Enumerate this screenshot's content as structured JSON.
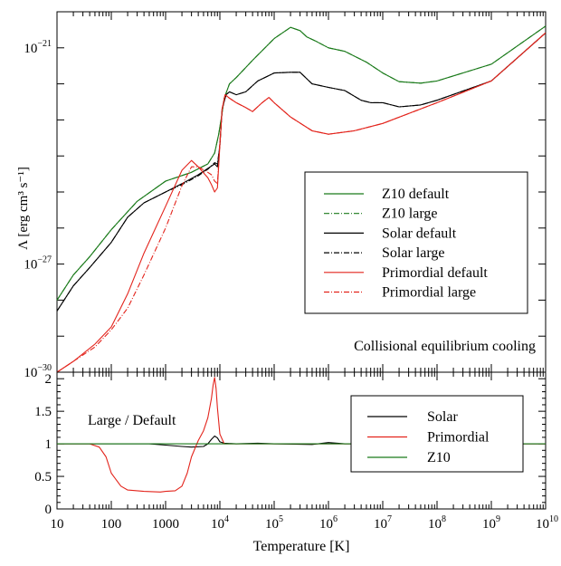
{
  "chart_data": [
    {
      "type": "line",
      "x_scale": "log",
      "y_scale": "log",
      "xlim": [
        10,
        10000000000
      ],
      "ylim": [
        1e-30,
        1e-20
      ],
      "ylabel": "Λ [erg cm³ s⁻¹]",
      "y_major_ticks": [
        {
          "value": 1e-21,
          "base": "10",
          "exp": "−21"
        },
        {
          "value": 1e-27,
          "base": "10",
          "exp": "−27"
        },
        {
          "value": 1e-30,
          "base": "10",
          "exp": "−30"
        }
      ],
      "annotation": "Collisional equilibrium cooling",
      "legend_position": "center-right",
      "series": [
        {
          "name": "Z10 default",
          "color": "#1a7a1a",
          "dash": "",
          "x": [
            10,
            20,
            40,
            100,
            300,
            1000,
            3000,
            6000,
            8000,
            9500,
            10500,
            12000,
            15000,
            20000,
            40000,
            100000,
            200000,
            300000,
            400000,
            600000,
            1000000,
            2000000,
            5000000,
            10000000,
            20000000,
            50000000,
            100000000,
            1000000000,
            10000000000
          ],
          "y": [
            1e-28,
            5e-28,
            1.6e-27,
            9e-27,
            5.5e-26,
            2e-25,
            3.5e-25,
            6e-25,
            1.2e-24,
            4e-24,
            1e-23,
            4e-23,
            1e-22,
            1.5e-22,
            4.5e-22,
            1.8e-21,
            3.7e-21,
            3e-21,
            2e-21,
            1.5e-21,
            1e-21,
            8e-22,
            4e-22,
            2e-22,
            1.15e-22,
            1.05e-22,
            1.2e-22,
            3.5e-22,
            4e-21
          ]
        },
        {
          "name": "Z10 large",
          "color": "#1a7a1a",
          "dash": "6,2,1,2",
          "x": [
            10,
            20,
            40,
            100,
            300,
            1000,
            3000,
            6000,
            8000,
            9500,
            10500,
            12000,
            15000,
            20000,
            40000,
            100000,
            200000,
            300000,
            400000,
            600000,
            1000000,
            2000000,
            5000000,
            10000000,
            20000000,
            50000000,
            100000000,
            1000000000,
            10000000000
          ],
          "y": [
            1e-28,
            5e-28,
            1.6e-27,
            9e-27,
            5.5e-26,
            2e-25,
            3.5e-25,
            6e-25,
            1.2e-24,
            4e-24,
            1e-23,
            4e-23,
            1e-22,
            1.5e-22,
            4.5e-22,
            1.8e-21,
            3.7e-21,
            3e-21,
            2e-21,
            1.5e-21,
            1e-21,
            8e-22,
            4e-22,
            2e-22,
            1.15e-22,
            1.05e-22,
            1.2e-22,
            3.5e-22,
            4e-21
          ]
        },
        {
          "name": "Solar default",
          "color": "#000000",
          "dash": "",
          "x": [
            10,
            20,
            40,
            100,
            200,
            400,
            1000,
            2000,
            4000,
            6000,
            8000,
            9000,
            10000,
            11000,
            13000,
            15000,
            20000,
            30000,
            50000,
            100000,
            200000,
            300000,
            500000,
            1000000,
            2000000,
            4000000,
            6000000,
            10000000,
            20000000,
            50000000,
            100000000,
            1000000000,
            10000000000
          ],
          "y": [
            5e-29,
            2.5e-28,
            8e-28,
            4e-27,
            2e-26,
            5e-26,
            1e-25,
            1.7e-25,
            3e-25,
            4.5e-25,
            6e-25,
            5e-25,
            2e-24,
            2e-23,
            5e-23,
            6e-23,
            5e-23,
            6e-23,
            1.2e-22,
            2e-22,
            2.1e-22,
            2.1e-22,
            1e-22,
            8e-23,
            6.5e-23,
            3.5e-23,
            3e-23,
            3e-23,
            2.3e-23,
            2.6e-23,
            3.5e-23,
            1.2e-22,
            2.6e-21
          ]
        },
        {
          "name": "Solar large",
          "color": "#000000",
          "dash": "6,2,1,2",
          "x": [
            10,
            20,
            40,
            100,
            200,
            400,
            1000,
            2000,
            4000,
            6000,
            8000,
            9000,
            10000,
            11000,
            13000,
            15000,
            20000,
            30000,
            50000,
            100000,
            200000,
            300000,
            500000,
            1000000,
            2000000,
            4000000,
            6000000,
            10000000,
            20000000,
            50000000,
            100000000,
            1000000000,
            10000000000
          ],
          "y": [
            5e-29,
            2.5e-28,
            8e-28,
            4e-27,
            2e-26,
            5e-26,
            1e-25,
            1.6e-25,
            2.8e-25,
            4.3e-25,
            6.5e-25,
            6e-25,
            2e-24,
            2e-23,
            5e-23,
            6e-23,
            5e-23,
            6e-23,
            1.2e-22,
            2e-22,
            2.1e-22,
            2.1e-22,
            1e-22,
            8e-23,
            6.5e-23,
            3.5e-23,
            3e-23,
            3e-23,
            2.3e-23,
            2.6e-23,
            3.5e-23,
            1.2e-22,
            2.6e-21
          ]
        },
        {
          "name": "Primordial default",
          "color": "#e3241c",
          "dash": "",
          "x": [
            10,
            20,
            50,
            100,
            200,
            400,
            1000,
            2000,
            3000,
            4000,
            6000,
            7000,
            8000,
            9000,
            10000,
            11000,
            12500,
            15000,
            20000,
            30000,
            40000,
            60000,
            80000,
            100000,
            200000,
            500000,
            1000000,
            3000000,
            10000000,
            100000000,
            1000000000,
            10000000000
          ],
          "y": [
            1e-30,
            2e-30,
            6e-30,
            1.8e-29,
            1.5e-28,
            2e-27,
            4e-26,
            4e-25,
            7.5e-25,
            5e-25,
            2.5e-25,
            1.6e-25,
            1e-25,
            1.3e-25,
            2e-24,
            2e-23,
            5e-23,
            4e-23,
            3e-23,
            2.2e-23,
            1.7e-23,
            3e-23,
            4.2e-23,
            3e-23,
            1.2e-23,
            5e-24,
            4e-24,
            5e-24,
            8e-24,
            3e-23,
            1.2e-22,
            2.6e-21
          ]
        },
        {
          "name": "Primordial large",
          "color": "#e3241c",
          "dash": "6,2,1,2",
          "x": [
            10,
            20,
            50,
            100,
            200,
            400,
            1000,
            2000,
            3000,
            4000,
            6000,
            7000,
            8000,
            9000,
            10000,
            11000,
            12500,
            15000,
            20000,
            30000,
            40000,
            60000,
            80000,
            100000,
            200000,
            500000,
            1000000,
            3000000,
            10000000,
            100000000,
            1000000000,
            10000000000
          ],
          "y": [
            1e-30,
            2e-30,
            5e-30,
            1.5e-29,
            6e-29,
            5e-28,
            1e-26,
            1.5e-25,
            5e-25,
            5e-25,
            3.5e-25,
            3e-25,
            2e-25,
            1.7e-25,
            2.5e-24,
            2e-23,
            5e-23,
            4e-23,
            3e-23,
            2.2e-23,
            1.7e-23,
            3e-23,
            4.2e-23,
            3e-23,
            1.2e-23,
            5e-24,
            4e-24,
            5e-24,
            8e-24,
            3e-23,
            1.2e-22,
            2.6e-21
          ]
        }
      ]
    },
    {
      "type": "line",
      "x_scale": "log",
      "y_scale": "linear",
      "xlim": [
        10,
        10000000000
      ],
      "ylim": [
        0,
        2.1
      ],
      "xlabel": "Temperature [K]",
      "annotation": "Large / Default",
      "x_ticks": [
        {
          "value": 10,
          "base": "10",
          "exp": ""
        },
        {
          "value": 100,
          "base": "100",
          "exp": ""
        },
        {
          "value": 1000,
          "base": "1000",
          "exp": ""
        },
        {
          "value": 10000,
          "base": "10",
          "exp": "4"
        },
        {
          "value": 100000,
          "base": "10",
          "exp": "5"
        },
        {
          "value": 1000000,
          "base": "10",
          "exp": "6"
        },
        {
          "value": 10000000,
          "base": "10",
          "exp": "7"
        },
        {
          "value": 100000000,
          "base": "10",
          "exp": "8"
        },
        {
          "value": 1000000000,
          "base": "10",
          "exp": "9"
        },
        {
          "value": 10000000000,
          "base": "10",
          "exp": "10"
        }
      ],
      "y_ticks": [
        {
          "value": 0,
          "label": "0"
        },
        {
          "value": 0.5,
          "label": "0.5"
        },
        {
          "value": 1,
          "label": "1"
        },
        {
          "value": 1.5,
          "label": "1.5"
        },
        {
          "value": 2,
          "label": "2"
        }
      ],
      "legend_position": "top-right",
      "series": [
        {
          "name": "Solar",
          "color": "#000000",
          "dash": "",
          "x": [
            10,
            100,
            500,
            1000,
            2000,
            3000,
            5000,
            6000,
            7000,
            8000,
            9000,
            10000,
            12000,
            20000,
            50000,
            100000,
            500000,
            1000000,
            2000000,
            10000000000
          ],
          "y": [
            1.0,
            1.0,
            1.0,
            0.98,
            0.96,
            0.95,
            0.96,
            1.0,
            1.07,
            1.12,
            1.09,
            1.03,
            1.01,
            1.0,
            1.01,
            1.0,
            0.99,
            1.02,
            1.0,
            1.0
          ]
        },
        {
          "name": "Primordial",
          "color": "#e3241c",
          "dash": "",
          "x": [
            10,
            40,
            60,
            80,
            100,
            150,
            200,
            400,
            800,
            1000,
            1500,
            2000,
            2500,
            3000,
            4000,
            5000,
            6000,
            7000,
            7500,
            8000,
            8500,
            9000,
            10000,
            12000,
            20000,
            1000000,
            10000000000
          ],
          "y": [
            1.0,
            1.0,
            0.95,
            0.8,
            0.55,
            0.35,
            0.29,
            0.27,
            0.26,
            0.27,
            0.28,
            0.35,
            0.55,
            0.8,
            1.05,
            1.2,
            1.4,
            1.7,
            1.9,
            2.02,
            1.85,
            1.55,
            1.15,
            1.0,
            1.0,
            1.0,
            1.0
          ]
        },
        {
          "name": "Z10",
          "color": "#1a7a1a",
          "dash": "",
          "x": [
            10,
            10000000000
          ],
          "y": [
            1.0,
            1.0
          ]
        }
      ]
    }
  ]
}
